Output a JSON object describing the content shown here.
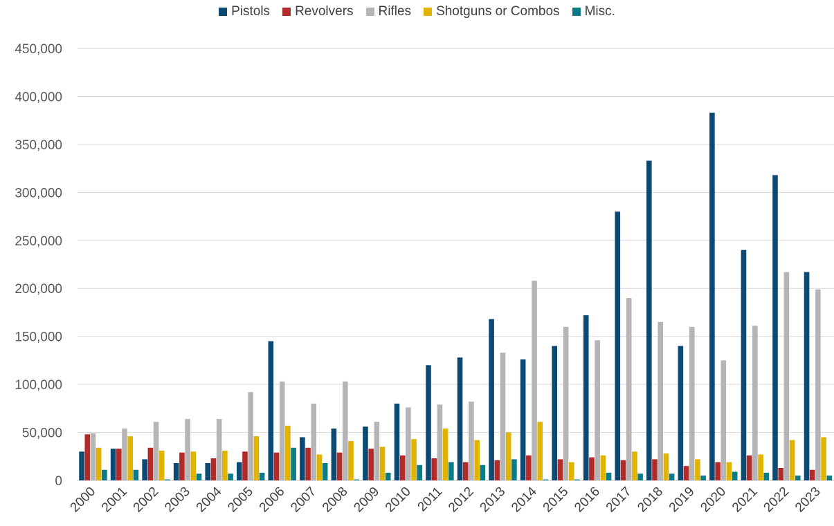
{
  "chart_data": {
    "type": "bar",
    "title": "",
    "xlabel": "",
    "ylabel": "",
    "ylim": [
      0,
      450000
    ],
    "y_ticks": [
      "0",
      "50,000",
      "100,000",
      "150,000",
      "200,000",
      "250,000",
      "300,000",
      "350,000",
      "400,000",
      "450,000"
    ],
    "grid": true,
    "legend_position": "top",
    "categories": [
      "2000",
      "2001",
      "2002",
      "2003",
      "2004",
      "2005",
      "2006",
      "2007",
      "2008",
      "2009",
      "2010",
      "2011",
      "2012",
      "2013",
      "2014",
      "2015",
      "2016",
      "2017",
      "2018",
      "2019",
      "2020",
      "2021",
      "2022",
      "2023"
    ],
    "series": [
      {
        "name": "Pistols",
        "color": "#0d4a73",
        "values": [
          30000,
          33000,
          22000,
          18000,
          18000,
          19000,
          145000,
          45000,
          54000,
          56000,
          80000,
          120000,
          128000,
          168000,
          126000,
          140000,
          172000,
          280000,
          333000,
          140000,
          383000,
          240000,
          318000,
          217000
        ]
      },
      {
        "name": "Revolvers",
        "color": "#b22a2a",
        "values": [
          48000,
          33000,
          34000,
          29000,
          23000,
          30000,
          29000,
          34000,
          29000,
          33000,
          26000,
          23000,
          19000,
          21000,
          26000,
          22000,
          24000,
          21000,
          22000,
          15000,
          19000,
          26000,
          13000,
          11000
        ]
      },
      {
        "name": "Rifles",
        "color": "#b5b5b5",
        "values": [
          49000,
          54000,
          61000,
          64000,
          64000,
          92000,
          103000,
          80000,
          103000,
          61000,
          76000,
          79000,
          82000,
          133000,
          208000,
          160000,
          146000,
          190000,
          165000,
          160000,
          125000,
          161000,
          217000,
          199000
        ]
      },
      {
        "name": "Shotguns or Combos",
        "color": "#e0b400",
        "values": [
          34000,
          46000,
          31000,
          30000,
          31000,
          46000,
          57000,
          27000,
          41000,
          35000,
          43000,
          54000,
          42000,
          50000,
          61000,
          19000,
          26000,
          30000,
          28000,
          22000,
          19000,
          27000,
          42000,
          45000
        ]
      },
      {
        "name": "Misc.",
        "color": "#0b7b87",
        "values": [
          11000,
          11000,
          1000,
          7000,
          7000,
          8000,
          34000,
          18000,
          1000,
          8000,
          16000,
          19000,
          16000,
          22000,
          1000,
          1000,
          8000,
          7000,
          7000,
          5000,
          9000,
          8000,
          5000,
          5000
        ]
      }
    ]
  }
}
